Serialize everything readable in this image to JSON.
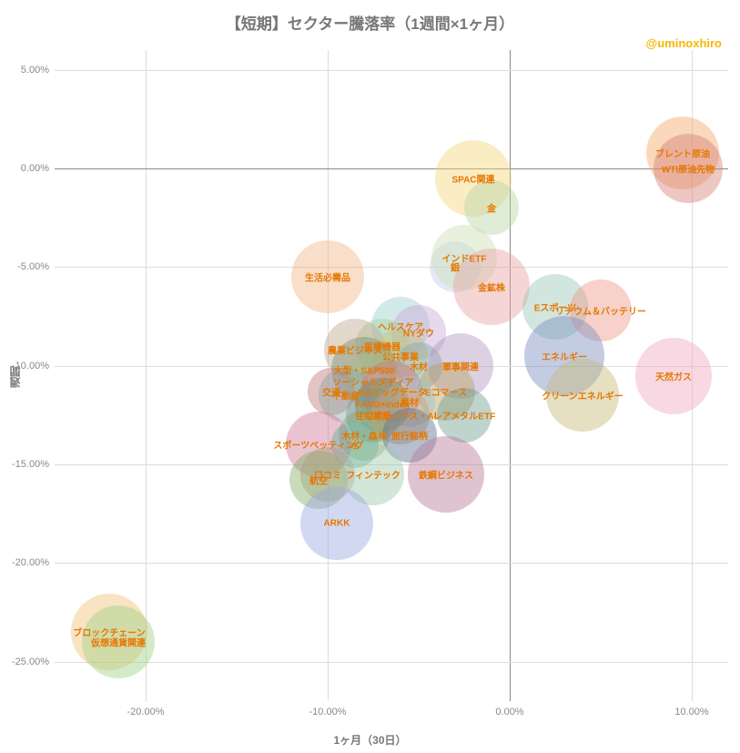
{
  "chart": {
    "type": "bubble",
    "title": "【短期】セクター騰落率（1週間×1ヶ月）",
    "watermark": "@uminoxhiro",
    "title_color": "#777777",
    "title_fontsize": 17,
    "watermark_color": "#f5b800",
    "background_color": "#ffffff",
    "x_axis": {
      "title": "1ヶ月（30日）",
      "min": -25,
      "max": 12,
      "ticks": [
        -20,
        -10,
        0,
        10
      ],
      "tick_labels": [
        "-20.00%",
        "-10.00%",
        "0.00%",
        "10.00%"
      ],
      "zero_line_color": "#888888",
      "grid_color": "#dddddd"
    },
    "y_axis": {
      "title": "週間",
      "min": -27,
      "max": 6,
      "ticks": [
        -25,
        -20,
        -15,
        -10,
        -5,
        0,
        5
      ],
      "tick_labels": [
        "-25.00%",
        "-20.00%",
        "-15.00%",
        "-10.00%",
        "-5.00%",
        "0.00%",
        "5.00%"
      ],
      "zero_line_color": "#888888",
      "grid_color": "#dddddd"
    },
    "label_color": "#e67700",
    "label_fontsize": 10,
    "bubble_opacity": 0.45,
    "bubbles": [
      {
        "label": "ブレント原油",
        "x": 9.5,
        "y": 0.8,
        "r": 40,
        "color": "#f4a868"
      },
      {
        "label": "WTI原油先物",
        "x": 9.8,
        "y": 0.0,
        "r": 38,
        "color": "#d4837a"
      },
      {
        "label": "SPAC関連",
        "x": -2.0,
        "y": -0.5,
        "r": 42,
        "color": "#f5d47a"
      },
      {
        "label": "金",
        "x": -1.0,
        "y": -2.0,
        "r": 30,
        "color": "#b9d7a3"
      },
      {
        "label": "銀",
        "x": -3.0,
        "y": -5.0,
        "r": 28,
        "color": "#c0d0e8"
      },
      {
        "label": "インドETF",
        "x": -2.5,
        "y": -4.5,
        "r": 36,
        "color": "#c9e0b5"
      },
      {
        "label": "生活必需品",
        "x": -10.0,
        "y": -5.5,
        "r": 40,
        "color": "#f2b98a"
      },
      {
        "label": "金鉱株",
        "x": -1.0,
        "y": -6.0,
        "r": 42,
        "color": "#e8a3a3"
      },
      {
        "label": "Eスポーツ",
        "x": 2.5,
        "y": -7.0,
        "r": 36,
        "color": "#9bc7b8"
      },
      {
        "label": "リチウム＆バッテリー",
        "x": 5.0,
        "y": -7.2,
        "r": 34,
        "color": "#f09a8a"
      },
      {
        "label": "ヘルスケア",
        "x": -6.0,
        "y": -8.0,
        "r": 32,
        "color": "#9bd0c9"
      },
      {
        "label": "NYダウ",
        "x": -5.0,
        "y": -8.3,
        "r": 30,
        "color": "#c9a8d6"
      },
      {
        "label": "医療機器",
        "x": -7.0,
        "y": -9.0,
        "r": 30,
        "color": "#a3d0a3"
      },
      {
        "label": "農業ビジネス",
        "x": -8.5,
        "y": -9.2,
        "r": 34,
        "color": "#c0a88e"
      },
      {
        "label": "公共事業",
        "x": -6.0,
        "y": -9.5,
        "r": 30,
        "color": "#d0c078"
      },
      {
        "label": "エネルギー",
        "x": 3.0,
        "y": -9.5,
        "r": 44,
        "color": "#7a8ec0"
      },
      {
        "label": "大型・S&P500",
        "x": -8.0,
        "y": -10.2,
        "r": 36,
        "color": "#7a9070"
      },
      {
        "label": "木材",
        "x": -5.0,
        "y": -10.0,
        "r": 26,
        "color": "#80a8a8"
      },
      {
        "label": "軍事関連",
        "x": -2.7,
        "y": -10.0,
        "r": 36,
        "color": "#b098c0"
      },
      {
        "label": "天然ガス",
        "x": 9.0,
        "y": -10.5,
        "r": 42,
        "color": "#f0a8c0"
      },
      {
        "label": "ソーシャルメディア",
        "x": -7.5,
        "y": -10.8,
        "r": 32,
        "color": "#a8c088"
      },
      {
        "label": "交通",
        "x": -9.8,
        "y": -11.3,
        "r": 26,
        "color": "#c07a7a"
      },
      {
        "label": "不動産",
        "x": -9.0,
        "y": -11.5,
        "r": 30,
        "color": "#8aa8a8"
      },
      {
        "label": "AI&ビッグデータ",
        "x": -6.5,
        "y": -11.3,
        "r": 34,
        "color": "#d07080"
      },
      {
        "label": "Eコマース",
        "x": -3.5,
        "y": -11.3,
        "r": 32,
        "color": "#b8a060"
      },
      {
        "label": "クリーンエネルギー",
        "x": 4.0,
        "y": -11.5,
        "r": 40,
        "color": "#c8b878"
      },
      {
        "label": "素材",
        "x": -5.5,
        "y": -11.8,
        "r": 28,
        "color": "#a0c0d0"
      },
      {
        "label": "FANG+index",
        "x": -7.0,
        "y": -12.0,
        "r": 30,
        "color": "#6a906a"
      },
      {
        "label": "住宅建設",
        "x": -7.5,
        "y": -12.5,
        "r": 30,
        "color": "#7a9898"
      },
      {
        "label": "ロボティクス・AI",
        "x": -6.0,
        "y": -12.5,
        "r": 32,
        "color": "#d0a070"
      },
      {
        "label": "レアメタルETF",
        "x": -2.5,
        "y": -12.5,
        "r": 30,
        "color": "#70a090"
      },
      {
        "label": "木材・森林",
        "x": -8.0,
        "y": -13.5,
        "r": 28,
        "color": "#8aa86a"
      },
      {
        "label": "旅行銘柄",
        "x": -5.5,
        "y": -13.5,
        "r": 30,
        "color": "#5a7090"
      },
      {
        "label": "スポーツベッティング",
        "x": -10.5,
        "y": -14.0,
        "r": 36,
        "color": "#d07a9a"
      },
      {
        "label": "水",
        "x": -8.5,
        "y": -14.0,
        "r": 26,
        "color": "#60b0a0"
      },
      {
        "label": "口コミ",
        "x": -10.0,
        "y": -15.5,
        "r": 30,
        "color": "#b8988a"
      },
      {
        "label": "航空",
        "x": -10.5,
        "y": -15.8,
        "r": 32,
        "color": "#88b068"
      },
      {
        "label": "フィンテック",
        "x": -7.5,
        "y": -15.5,
        "r": 34,
        "color": "#a0c8a8"
      },
      {
        "label": "鉄鋼ビジネス",
        "x": -3.5,
        "y": -15.5,
        "r": 42,
        "color": "#b87a9a"
      },
      {
        "label": "ARKK",
        "x": -9.5,
        "y": -18.0,
        "r": 40,
        "color": "#9aa8e0"
      },
      {
        "label": "ブロックチェーン",
        "x": -22.0,
        "y": -23.5,
        "r": 42,
        "color": "#f0c078"
      },
      {
        "label": "仮想通貨関連",
        "x": -21.5,
        "y": -24.0,
        "r": 40,
        "color": "#a0d088"
      }
    ]
  }
}
